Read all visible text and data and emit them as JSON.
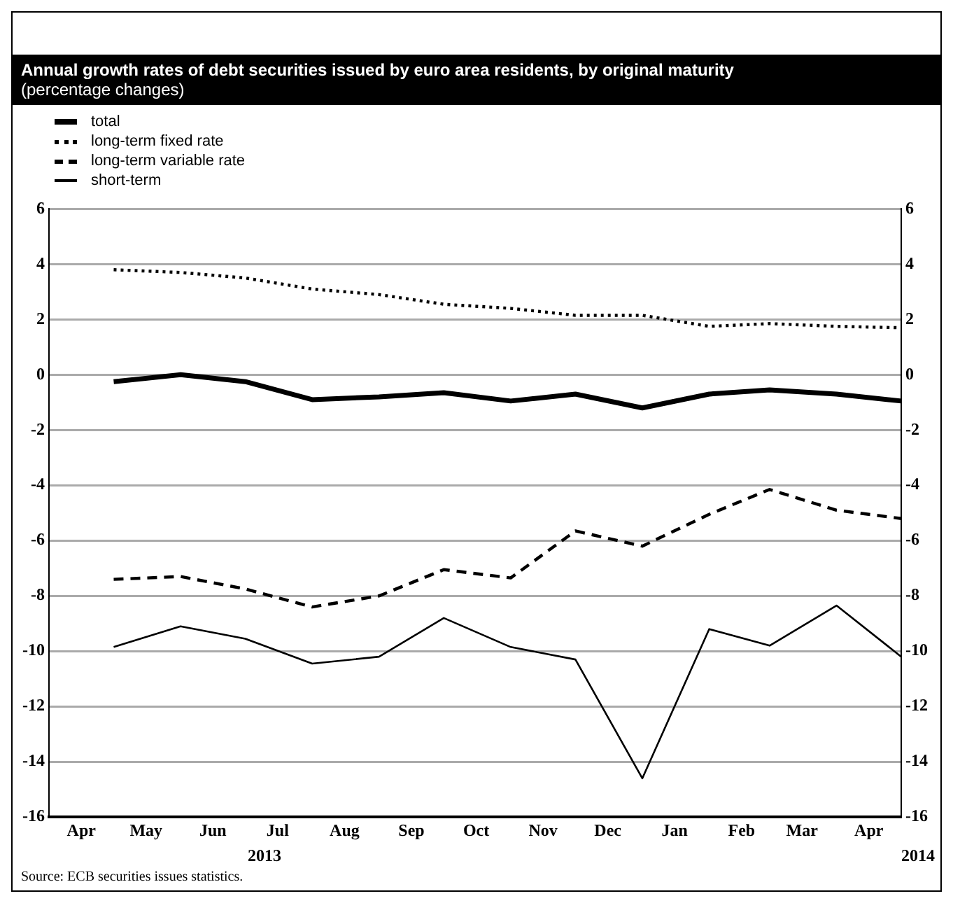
{
  "chart_data": {
    "type": "line",
    "title": "Annual growth rates of debt securities issued by euro area residents, by original maturity",
    "subtitle": "(percentage changes)",
    "x": [
      "2013-05-01",
      "2013-06-01",
      "2013-07-01",
      "2013-08-01",
      "2013-09-01",
      "2013-10-01",
      "2013-11-01",
      "2013-12-01",
      "2014-01-01",
      "2014-02-01",
      "2014-03-01",
      "2014-04-01",
      "2014-05-01"
    ],
    "series": [
      {
        "name": "total",
        "color": "#000000",
        "line_style": "solid",
        "values": [
          -0.25,
          0,
          -0.25,
          -0.9,
          -0.8,
          -0.65,
          -0.95,
          -0.7,
          -1.2,
          -0.7,
          -0.55,
          -0.7,
          -0.95
        ]
      },
      {
        "name": "long-term fixed rate",
        "color": "#000000",
        "line_style": "dotted",
        "values": [
          3.8,
          3.7,
          3.5,
          3.1,
          2.9,
          2.55,
          2.4,
          2.15,
          2.15,
          1.75,
          1.85,
          1.75,
          1.7
        ]
      },
      {
        "name": "long-term variable rate",
        "color": "#000000",
        "line_style": "dashed",
        "values": [
          -7.4,
          -7.3,
          -7.75,
          -8.4,
          -8.0,
          -7.05,
          -7.35,
          -5.65,
          -6.2,
          -5.05,
          -4.15,
          -4.9,
          -5.2
        ]
      },
      {
        "name": "short-term",
        "color": "#000000",
        "line_style": "solid",
        "values": [
          -9.85,
          -9.1,
          -9.55,
          -10.45,
          -10.2,
          -8.8,
          -9.85,
          -10.3,
          -14.6,
          -9.2,
          -9.8,
          -8.35,
          -10.2
        ]
      }
    ],
    "xlim": [
      "2013-04-01",
      "2014-05-01"
    ],
    "xticks": [
      {
        "value": "2013-04-16",
        "label": "Apr"
      },
      {
        "value": "2013-05-16",
        "label": "May"
      },
      {
        "value": "2013-06-16",
        "label": "Jun"
      },
      {
        "value": "2013-07-16",
        "label": "Jul"
      },
      {
        "value": "2013-08-16",
        "label": "Aug"
      },
      {
        "value": "2013-09-16",
        "label": "Sep"
      },
      {
        "value": "2013-10-16",
        "label": "Oct"
      },
      {
        "value": "2013-11-16",
        "label": "Nov"
      },
      {
        "value": "2013-12-16",
        "label": "Dec"
      },
      {
        "value": "2014-01-16",
        "label": "Jan"
      },
      {
        "value": "2014-02-16",
        "label": "Feb"
      },
      {
        "value": "2014-03-16",
        "label": "Mar"
      },
      {
        "value": "2014-04-16",
        "label": "Apr"
      }
    ],
    "ylim": [
      -16,
      6
    ],
    "yticks": [
      -16,
      -14,
      -12,
      -10,
      -8,
      -6,
      -4,
      -2,
      0,
      2,
      4,
      6
    ],
    "y2lim": [
      -16,
      6
    ],
    "y2ticks": [
      -16,
      -14,
      -12,
      -10,
      -8,
      -6,
      -4,
      -2,
      0,
      2,
      4,
      6
    ],
    "grid": "y",
    "legend": "top left",
    "marker": "none",
    "annotations": [
      "2013",
      "2014",
      "Source: ECB securities issues statistics."
    ]
  }
}
